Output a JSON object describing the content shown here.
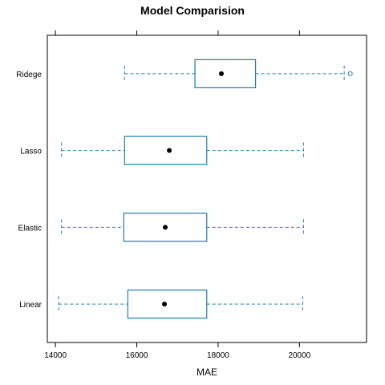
{
  "colors": {
    "box": "#1b7fb0",
    "median": "#000000",
    "frame": "#000000"
  },
  "chart_data": {
    "type": "boxplot",
    "title": "Model Comparision",
    "xlabel": "MAE",
    "xlim": [
      13800,
      21650
    ],
    "x_ticks": [
      14000,
      16000,
      18000,
      20000
    ],
    "x_tick_labels": [
      "14000",
      "16000",
      "18000",
      "20000"
    ],
    "categories": [
      "Ridege",
      "Lasso",
      "Elastic",
      "Linear"
    ],
    "boxes": [
      {
        "name": "Ridege",
        "whisker_low": 15700,
        "q1": 17430,
        "median": 18080,
        "q3": 18920,
        "whisker_high": 21100,
        "outliers": [
          21250
        ]
      },
      {
        "name": "Lasso",
        "whisker_low": 14150,
        "q1": 15700,
        "median": 16800,
        "q3": 17720,
        "whisker_high": 20100,
        "outliers": []
      },
      {
        "name": "Elastic",
        "whisker_low": 14150,
        "q1": 15680,
        "median": 16700,
        "q3": 17720,
        "whisker_high": 20100,
        "outliers": []
      },
      {
        "name": "Linear",
        "whisker_low": 14080,
        "q1": 15780,
        "median": 16680,
        "q3": 17720,
        "whisker_high": 20080,
        "outliers": []
      }
    ],
    "grid": false
  }
}
